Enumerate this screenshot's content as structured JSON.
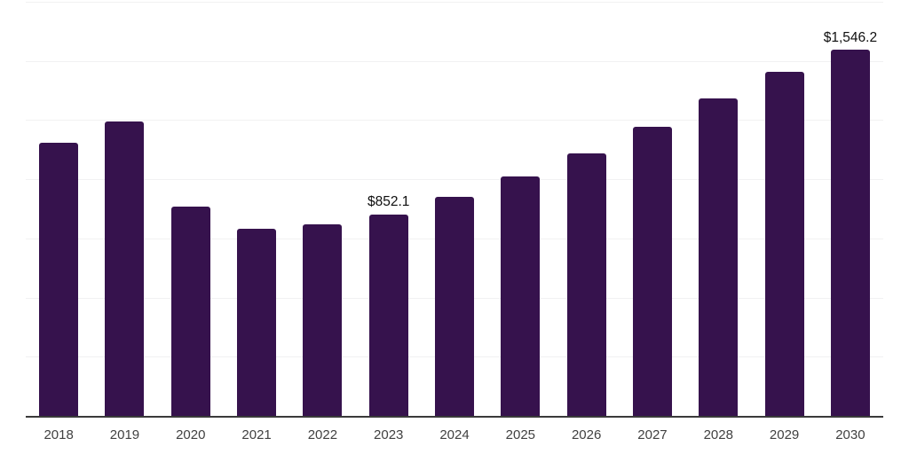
{
  "chart_data": {
    "type": "bar",
    "title": "",
    "xlabel": "",
    "ylabel": "",
    "categories": [
      "2018",
      "2019",
      "2020",
      "2021",
      "2022",
      "2023",
      "2024",
      "2025",
      "2026",
      "2027",
      "2028",
      "2029",
      "2030"
    ],
    "values": [
      1156,
      1246,
      886,
      789,
      811,
      852.1,
      926,
      1010,
      1110,
      1220,
      1343,
      1455,
      1546.2
    ],
    "point_labels": {
      "2023": "$852.1",
      "2030": "$1,546.2"
    },
    "ylim": [
      0,
      1750
    ],
    "grid_step": 250,
    "grid": true,
    "legend_position": "none",
    "colors": {
      "bar": "#36124d",
      "grid": "#f1f1f2",
      "axis": "#3a3a3a",
      "tick_text": "#414141",
      "label_text": "#0f0f0f",
      "background": "#ffffff"
    }
  }
}
